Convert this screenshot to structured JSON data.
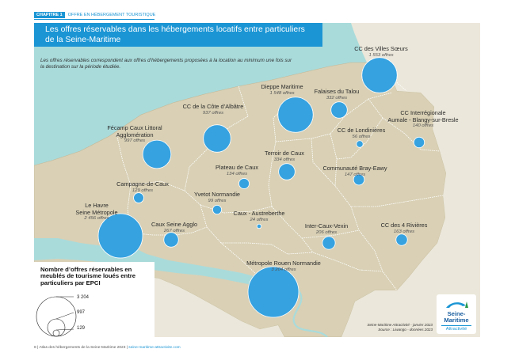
{
  "header": {
    "chapter_tag": "CHAPITRE 1",
    "chapter_title": "OFFRE EN HÉBERGEMENT TOURISTIQUE"
  },
  "map": {
    "title": "Les offres réservables dans les hébergements locatifs entre particuliers de la Seine-Maritime",
    "note": "Les offres réservables correspondent aux offres d’hébergements proposées à la location au minimum une fois sur la destination sur la période étudiée.",
    "colors": {
      "sea": "#a9dbdb",
      "land": "#d9d0b5",
      "water_inland": "#a9dbdb",
      "bubble": "#36a2e0",
      "boundary": "#ffffff"
    },
    "epci": [
      {
        "name": "CC des Villes Sœurs",
        "value_label": "1 553 offres",
        "value": 1553
      },
      {
        "name": "Dieppe Maritime",
        "value_label": "1 548 offres",
        "value": 1548
      },
      {
        "name": "Falaises du Talou",
        "value_label": "332 offres",
        "value": 332
      },
      {
        "name": "CC de la Côte d’Albâtre",
        "value_label": "937 offres",
        "value": 937
      },
      {
        "name": "CC Interrégionale Aumale - Blangy-sur-Bresle",
        "value_label": "140 offres",
        "value": 140
      },
      {
        "name": "CC de Londinières",
        "value_label": "56 offres",
        "value": 56
      },
      {
        "name": "Fécamp Caux Littoral Agglomération",
        "value_label": "997 offres",
        "value": 997
      },
      {
        "name": "Terroir de Caux",
        "value_label": "334 offres",
        "value": 334
      },
      {
        "name": "Plateau de Caux",
        "value_label": "134 offres",
        "value": 134
      },
      {
        "name": "Communauté Bray-Eawy",
        "value_label": "147 offres",
        "value": 147
      },
      {
        "name": "Campagne-de-Caux",
        "value_label": "129 offres",
        "value": 129
      },
      {
        "name": "Yvetot Normandie",
        "value_label": "99 offres",
        "value": 99
      },
      {
        "name": "Le Havre Seine Métropole",
        "value_label": "2 456 offres",
        "value": 2456
      },
      {
        "name": "Caux - Austreberthe",
        "value_label": "24 offres",
        "value": 24
      },
      {
        "name": "Caux Seine Agglo",
        "value_label": "267 offres",
        "value": 267
      },
      {
        "name": "Inter-Caux-Vexin",
        "value_label": "206 offres",
        "value": 206
      },
      {
        "name": "CC des 4 Rivières",
        "value_label": "163 offres",
        "value": 163
      },
      {
        "name": "Métropole Rouen Normandie",
        "value_label": "3 204 offres",
        "value": 3204
      }
    ],
    "legend": {
      "title": "Nombre d’offres réservables en meublés de tourisme loués entre particuliers par EPCI",
      "values": [
        "3 204",
        "997",
        "129"
      ]
    },
    "logo": {
      "line1": "Seine-",
      "line2": "Maritime",
      "line3": "Attractivité"
    },
    "source": {
      "line1": "Seine-Maritime Attractivité - janvier 2023",
      "line2": "Source : Liwango - données 2023"
    }
  },
  "footer": {
    "text": "8 | Atlas des hébergements de la Seine-Maritime 2023 |",
    "url": "seine-maritime-attractivite.com"
  }
}
